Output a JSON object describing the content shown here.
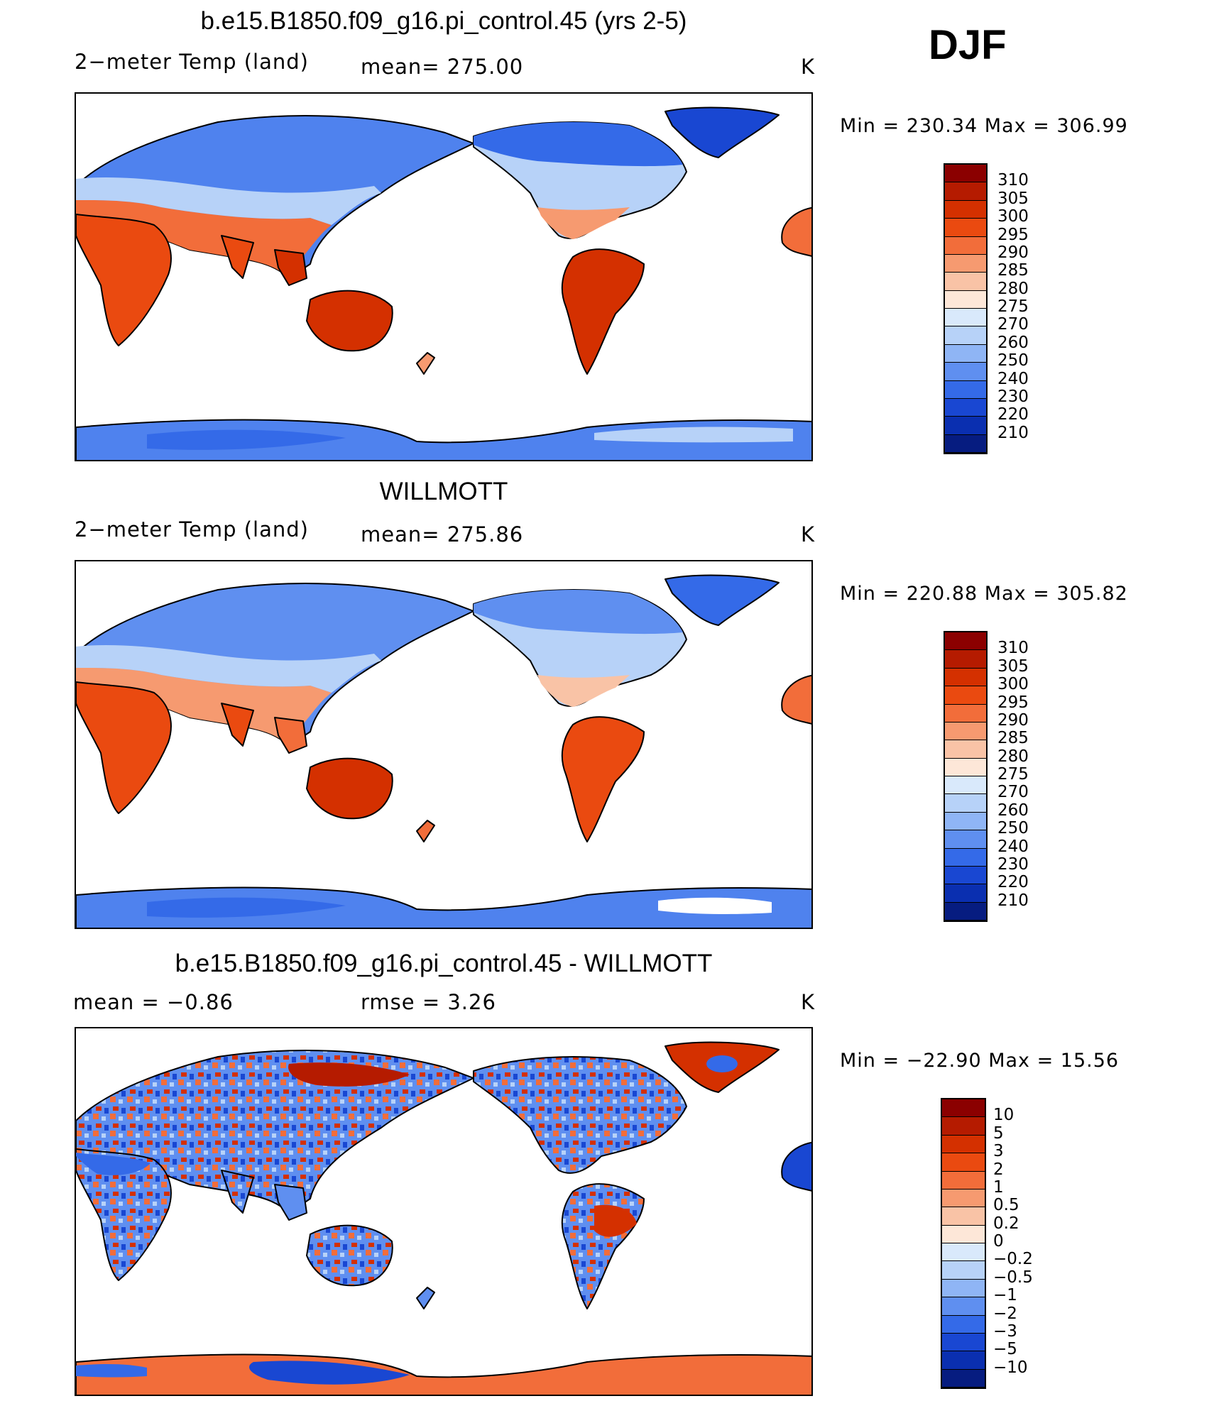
{
  "season": "DJF",
  "panels": [
    {
      "title": "b.e15.B1850.f09_g16.pi_control.45 (yrs 2-5)",
      "left_label": "2−meter Temp (land)",
      "center_label": "mean=  275.00",
      "units": "K",
      "minmax": "Min  =  230.34  Max  =  306.99",
      "palette": "abs"
    },
    {
      "title": "WILLMOTT",
      "left_label": "2−meter Temp (land)",
      "center_label": "mean=  275.86",
      "units": "K",
      "minmax": "Min  =  220.88  Max  =  305.82",
      "palette": "abs"
    },
    {
      "title": "b.e15.B1850.f09_g16.pi_control.45 - WILLMOTT",
      "left_label": "mean  =    −0.86",
      "center_label": "rmse  =     3.26",
      "units": "K",
      "minmax": "Min  =  −22.90  Max  =    15.56",
      "palette": "diff"
    }
  ],
  "colorbar_abs": {
    "labels": [
      "310",
      "305",
      "300",
      "295",
      "290",
      "285",
      "280",
      "275",
      "270",
      "260",
      "250",
      "240",
      "230",
      "220",
      "210"
    ],
    "colors": [
      "#8b0000",
      "#b51b00",
      "#d43000",
      "#ea4a10",
      "#f26d3a",
      "#f69a70",
      "#f9c3a6",
      "#fde7d8",
      "#d9e9fb",
      "#b7d2f8",
      "#8fb5f5",
      "#5f8ff0",
      "#346ae8",
      "#1947d2",
      "#0a2fb0",
      "#061c80"
    ]
  },
  "colorbar_diff": {
    "labels": [
      "10",
      "5",
      "3",
      "2",
      "1",
      "0.5",
      "0.2",
      "0",
      "−0.2",
      "−0.5",
      "−1",
      "−2",
      "−3",
      "−5",
      "−10"
    ],
    "colors": [
      "#8b0000",
      "#b51b00",
      "#d43000",
      "#ea4a10",
      "#f26d3a",
      "#f69a70",
      "#f9c3a6",
      "#fde7d8",
      "#d9e9fb",
      "#b7d2f8",
      "#8fb5f5",
      "#5f8ff0",
      "#346ae8",
      "#1947d2",
      "#0a2fb0",
      "#061c80"
    ]
  }
}
